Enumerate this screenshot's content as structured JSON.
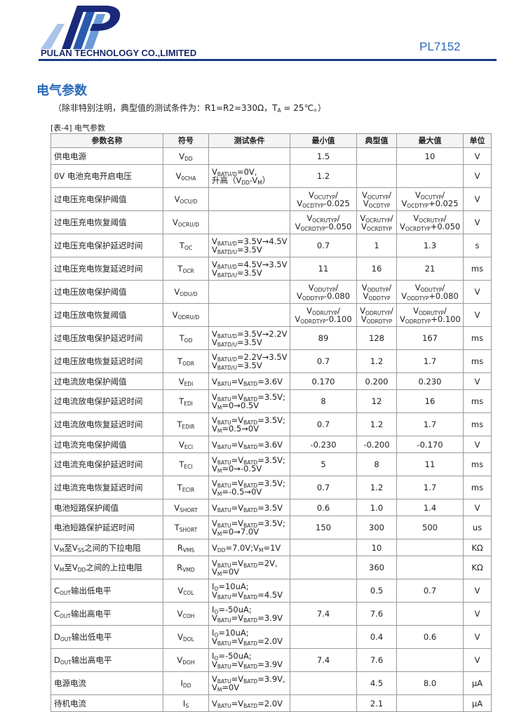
{
  "header": {
    "company": "PULAN TECHNOLOGY CO.,LIMITED",
    "part_number": "PL7152"
  },
  "section": {
    "title": "电气参数",
    "note": [
      "（除非特别注明，典型值的测试条件为：R1=R2=330Ω，T",
      {
        "sub": "A"
      },
      " = 25℃。）"
    ]
  },
  "table": {
    "caption": "[表-4] 电气参数",
    "header": [
      "参数名称",
      "符号",
      "测试条件",
      "最小值",
      "典型值",
      "最大值",
      "单位"
    ],
    "rows": [
      [
        "供电电源",
        [
          [
            "V",
            {
              "sub": "DD"
            }
          ]
        ],
        null,
        "1.5",
        null,
        "10",
        "V"
      ],
      [
        "0V 电池充电开启电压",
        [
          [
            "V",
            {
              "sub": "0CHA"
            }
          ]
        ],
        [
          [
            "V",
            {
              "sub": "BATU/D"
            },
            "=0V,"
          ],
          [
            "升高（V",
            {
              "sub": "DD"
            },
            "-V",
            {
              "sub": "M"
            },
            "）"
          ]
        ],
        "1.2",
        null,
        null,
        "V"
      ],
      [
        "过电压充电保护阈值",
        [
          [
            "V",
            {
              "sub": "OCU/D"
            }
          ]
        ],
        null,
        [
          [
            "V",
            {
              "sub": "OCUTYP"
            },
            "/"
          ],
          [
            "V",
            {
              "sub": "OCDTYP"
            },
            "-0.025"
          ]
        ],
        [
          [
            "V",
            {
              "sub": "OCUTYP"
            },
            "/"
          ],
          [
            "V",
            {
              "sub": "OCDTYP"
            }
          ]
        ],
        [
          [
            "V",
            {
              "sub": "OCUTYP"
            },
            "/"
          ],
          [
            "V",
            {
              "sub": "OCDTYP"
            },
            "+0.025"
          ]
        ],
        "V"
      ],
      [
        "过电压充电恢复阈值",
        [
          [
            "V",
            {
              "sub": "OCRU/D"
            }
          ]
        ],
        null,
        [
          [
            "V",
            {
              "sub": "OCRUTYP"
            },
            "/"
          ],
          [
            "V",
            {
              "sub": "OCRDTYP"
            },
            "-0.050"
          ]
        ],
        [
          [
            "V",
            {
              "sub": "OCRUTYP"
            },
            "/"
          ],
          [
            "V",
            {
              "sub": "OCRDTYP"
            }
          ]
        ],
        [
          [
            "V",
            {
              "sub": "OCRUTYP"
            },
            "/"
          ],
          [
            "V",
            {
              "sub": "OCRDTYP"
            },
            "+0.050"
          ]
        ],
        "V"
      ],
      [
        "过电压充电保护延迟时间",
        [
          [
            "T",
            {
              "sub": "OC"
            }
          ]
        ],
        [
          [
            "V",
            {
              "sub": "BATU/D"
            },
            "=3.5V→4.5V"
          ],
          [
            "V",
            {
              "sub": "BATD/U"
            },
            "=3.5V"
          ]
        ],
        "0.7",
        "1",
        "1.3",
        "s"
      ],
      [
        "过电压充电恢复延迟时间",
        [
          [
            "T",
            {
              "sub": "OCR"
            }
          ]
        ],
        [
          [
            "V",
            {
              "sub": "BATU/D"
            },
            "=4.5V→3.5V"
          ],
          [
            "V",
            {
              "sub": "BATD/U"
            },
            "=3.5V"
          ]
        ],
        "11",
        "16",
        "21",
        "ms"
      ],
      [
        "过电压放电保护阈值",
        [
          [
            "V",
            {
              "sub": "ODU/D"
            }
          ]
        ],
        null,
        [
          [
            "V",
            {
              "sub": "ODUTYP"
            },
            "/"
          ],
          [
            "V",
            {
              "sub": "ODDTYP"
            },
            "-0.080"
          ]
        ],
        [
          [
            "V",
            {
              "sub": "ODUTYP"
            },
            "/"
          ],
          [
            "V",
            {
              "sub": "ODDTYP"
            }
          ]
        ],
        [
          [
            "V",
            {
              "sub": "ODUTYP"
            },
            "/"
          ],
          [
            "V",
            {
              "sub": "ODDTYP"
            },
            "+0.080"
          ]
        ],
        "V"
      ],
      [
        "过电压放电恢复阈值",
        [
          [
            "V",
            {
              "sub": "ODRU/D"
            }
          ]
        ],
        null,
        [
          [
            "V",
            {
              "sub": "ODRUTYP"
            },
            "/"
          ],
          [
            "V",
            {
              "sub": "ODRDTYP"
            },
            "-0.100"
          ]
        ],
        [
          [
            "V",
            {
              "sub": "ODRUTYP"
            },
            "/"
          ],
          [
            "V",
            {
              "sub": "ODRDTYP"
            }
          ]
        ],
        [
          [
            "V",
            {
              "sub": "ODRUTYP"
            },
            "/"
          ],
          [
            "V",
            {
              "sub": "ODRDTYP"
            },
            "+0.100"
          ]
        ],
        "V"
      ],
      [
        "过电压放电保护延迟时间",
        [
          [
            "T",
            {
              "sub": "OD"
            }
          ]
        ],
        [
          [
            "V",
            {
              "sub": "BATU/D"
            },
            "=3.5V→2.2V"
          ],
          [
            "V",
            {
              "sub": "BATD/U"
            },
            "=3.5V"
          ]
        ],
        "89",
        "128",
        "167",
        "ms"
      ],
      [
        "过电压放电恢复延迟时间",
        [
          [
            "T",
            {
              "sub": "ODR"
            }
          ]
        ],
        [
          [
            "V",
            {
              "sub": "BATU/D"
            },
            "=2.2V→3.5V"
          ],
          [
            "V",
            {
              "sub": "BATD/U"
            },
            "=3.5V"
          ]
        ],
        "0.7",
        "1.2",
        "1.7",
        "ms"
      ],
      [
        "过电流放电保护阈值",
        [
          [
            "V",
            {
              "sub": "EDI"
            }
          ]
        ],
        [
          [
            "V",
            {
              "sub": "BATU"
            },
            "=V",
            {
              "sub": "BATD"
            },
            "=3.6V"
          ]
        ],
        "0.170",
        "0.200",
        "0.230",
        "V"
      ],
      [
        "过电流放电保护延迟时间",
        [
          [
            "T",
            {
              "sub": "EDI"
            }
          ]
        ],
        [
          [
            "V",
            {
              "sub": "BATU"
            },
            "=V",
            {
              "sub": "BATD"
            },
            "=3.5V;"
          ],
          [
            "V",
            {
              "sub": "M"
            },
            "=0→0.5V"
          ]
        ],
        "8",
        "12",
        "16",
        "ms"
      ],
      [
        "过电流放电恢复延迟时间",
        [
          [
            "T",
            {
              "sub": "EDIR"
            }
          ]
        ],
        [
          [
            "V",
            {
              "sub": "BATU"
            },
            "=V",
            {
              "sub": "BATD"
            },
            "=3.5V;"
          ],
          [
            "V",
            {
              "sub": "M"
            },
            "=0.5→0V"
          ]
        ],
        "0.7",
        "1.2",
        "1.7",
        "ms"
      ],
      [
        "过电流充电保护阈值",
        [
          [
            "V",
            {
              "sub": "ECI"
            }
          ]
        ],
        [
          [
            "V",
            {
              "sub": "BATU"
            },
            "=V",
            {
              "sub": "BATD"
            },
            "=3.6V"
          ]
        ],
        "-0.230",
        "-0.200",
        "-0.170",
        "V"
      ],
      [
        "过电流充电保护延迟时间",
        [
          [
            "T",
            {
              "sub": "ECI"
            }
          ]
        ],
        [
          [
            "V",
            {
              "sub": "BATU"
            },
            "=V",
            {
              "sub": "BATD"
            },
            "=3.5V;"
          ],
          [
            "V",
            {
              "sub": "M"
            },
            "=0→-0.5V"
          ]
        ],
        "5",
        "8",
        "11",
        "ms"
      ],
      [
        "过电流充电恢复延迟时间",
        [
          [
            "T",
            {
              "sub": "ECIR"
            }
          ]
        ],
        [
          [
            "V",
            {
              "sub": "BATU"
            },
            "=V",
            {
              "sub": "BATD"
            },
            "=3.5V;"
          ],
          [
            "V",
            {
              "sub": "M"
            },
            "=-0.5→0V"
          ]
        ],
        "0.7",
        "1.2",
        "1.7",
        "ms"
      ],
      [
        "电池短路保护阈值",
        [
          [
            "V",
            {
              "sub": "SHORT"
            }
          ]
        ],
        [
          [
            "V",
            {
              "sub": "BATU"
            },
            "=V",
            {
              "sub": "BATD"
            },
            "=3.5V"
          ]
        ],
        "0.6",
        "1.0",
        "1.4",
        "V"
      ],
      [
        "电池短路保护延迟时间",
        [
          [
            "T",
            {
              "sub": "SHORT"
            }
          ]
        ],
        [
          [
            "V",
            {
              "sub": "BATU"
            },
            "=V",
            {
              "sub": "BATD"
            },
            "=3.5V;"
          ],
          [
            "V",
            {
              "sub": "M"
            },
            "=0→7.0V"
          ]
        ],
        "150",
        "300",
        "500",
        "us"
      ],
      [
        [
          [
            "V",
            {
              "sub": "M"
            },
            "至V",
            {
              "sub": "SS"
            },
            "之间的下拉电阻"
          ]
        ],
        [
          [
            "R",
            {
              "sub": "VMS"
            }
          ]
        ],
        [
          [
            "V",
            {
              "sub": "DD"
            },
            "=7.0V;V",
            {
              "sub": "M"
            },
            "=1V"
          ]
        ],
        null,
        "10",
        null,
        "KΩ"
      ],
      [
        [
          [
            "V",
            {
              "sub": "M"
            },
            "至V",
            {
              "sub": "DD"
            },
            "之间的上拉电阻"
          ]
        ],
        [
          [
            "R",
            {
              "sub": "VMD"
            }
          ]
        ],
        [
          [
            "V",
            {
              "sub": "BATU"
            },
            "=V",
            {
              "sub": "BATD"
            },
            "=2V,"
          ],
          [
            "V",
            {
              "sub": "M"
            },
            "=0V"
          ]
        ],
        null,
        "360",
        null,
        "KΩ"
      ],
      [
        [
          [
            "C",
            {
              "sub": "OUT"
            },
            "输出低电平"
          ]
        ],
        [
          [
            "V",
            {
              "sub": "COL"
            }
          ]
        ],
        [
          [
            "I",
            {
              "sub": "O"
            },
            "=10uA;"
          ],
          [
            "V",
            {
              "sub": "BATU"
            },
            "=V",
            {
              "sub": "BATD"
            },
            "=4.5V"
          ]
        ],
        null,
        "0.5",
        "0.7",
        "V"
      ],
      [
        [
          [
            "C",
            {
              "sub": "OUT"
            },
            "输出高电平"
          ]
        ],
        [
          [
            "V",
            {
              "sub": "COH"
            }
          ]
        ],
        [
          [
            "I",
            {
              "sub": "O"
            },
            "=-50uA;"
          ],
          [
            "V",
            {
              "sub": "BATU"
            },
            "=V",
            {
              "sub": "BATD"
            },
            "=3.9V"
          ]
        ],
        "7.4",
        "7.6",
        null,
        "V"
      ],
      [
        [
          [
            "D",
            {
              "sub": "OUT"
            },
            "输出低电平"
          ]
        ],
        [
          [
            "V",
            {
              "sub": "DOL"
            }
          ]
        ],
        [
          [
            "I",
            {
              "sub": "O"
            },
            "=10uA;"
          ],
          [
            "V",
            {
              "sub": "BATU"
            },
            "=V",
            {
              "sub": "BATD"
            },
            "=2.0V"
          ]
        ],
        null,
        "0.4",
        "0.6",
        "V"
      ],
      [
        [
          [
            "D",
            {
              "sub": "OUT"
            },
            "输出高电平"
          ]
        ],
        [
          [
            "V",
            {
              "sub": "DOH"
            }
          ]
        ],
        [
          [
            "I",
            {
              "sub": "O"
            },
            "=-50uA;"
          ],
          [
            "V",
            {
              "sub": "BATU"
            },
            "=V",
            {
              "sub": "BATD"
            },
            "=3.9V"
          ]
        ],
        "7.4",
        "7.6",
        null,
        "V"
      ],
      [
        "电源电流",
        [
          [
            "I",
            {
              "sub": "DD"
            }
          ]
        ],
        [
          [
            "V",
            {
              "sub": "BATU"
            },
            "=V",
            {
              "sub": "BATD"
            },
            "=3.9V,"
          ],
          [
            "V",
            {
              "sub": "M"
            },
            "=0V"
          ]
        ],
        null,
        "4.5",
        "8.0",
        "μA"
      ],
      [
        "待机电流",
        [
          [
            "I",
            {
              "sub": "S"
            }
          ]
        ],
        [
          [
            "V",
            {
              "sub": "BATU"
            },
            "=V",
            {
              "sub": "BATD"
            },
            "=2.0V"
          ]
        ],
        null,
        "2.1",
        null,
        "μA"
      ]
    ]
  }
}
